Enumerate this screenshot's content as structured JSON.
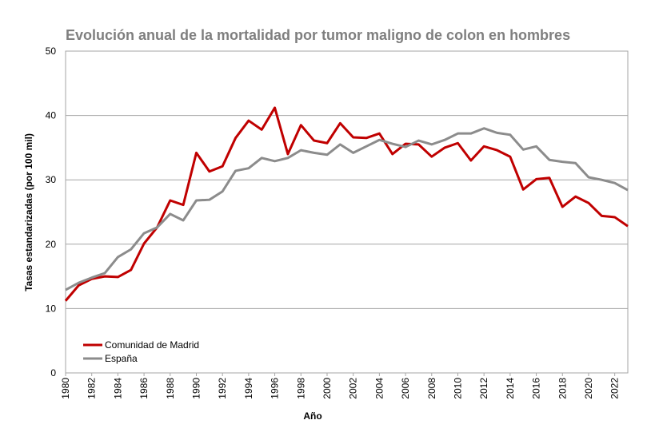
{
  "chart_data": {
    "type": "line",
    "title": "Evolución anual de la mortalidad por tumor maligno de colon en hombres",
    "xlabel": "Año",
    "ylabel": "Tasas estandarizadas (por 100 mil)",
    "x": [
      1980,
      1981,
      1982,
      1983,
      1984,
      1985,
      1986,
      1987,
      1988,
      1989,
      1990,
      1991,
      1992,
      1993,
      1994,
      1995,
      1996,
      1997,
      1998,
      1999,
      2000,
      2001,
      2002,
      2003,
      2004,
      2005,
      2006,
      2007,
      2008,
      2009,
      2010,
      2011,
      2012,
      2013,
      2014,
      2015,
      2016,
      2017,
      2018,
      2019,
      2020,
      2021,
      2022,
      2023
    ],
    "series": [
      {
        "name": "Comunidad de Madrid",
        "color": "#c00000",
        "values": [
          11.2,
          13.6,
          14.6,
          15.0,
          14.9,
          16.0,
          20.1,
          22.6,
          26.8,
          26.1,
          34.2,
          31.3,
          32.1,
          36.5,
          39.2,
          37.8,
          41.2,
          34.0,
          38.5,
          36.1,
          35.7,
          38.8,
          36.6,
          36.5,
          37.2,
          34.0,
          35.6,
          35.5,
          33.6,
          35.0,
          35.7,
          33.0,
          35.2,
          34.6,
          33.6,
          28.5,
          30.1,
          30.3,
          25.8,
          27.4,
          26.4,
          24.4,
          24.2,
          22.8
        ]
      },
      {
        "name": "España",
        "color": "#8c8c8c",
        "values": [
          12.9,
          14.0,
          14.8,
          15.5,
          18.0,
          19.2,
          21.7,
          22.6,
          24.7,
          23.7,
          26.8,
          26.9,
          28.2,
          31.4,
          31.8,
          33.4,
          32.9,
          33.4,
          34.6,
          34.2,
          33.9,
          35.5,
          34.2,
          35.2,
          36.2,
          35.6,
          35.1,
          36.1,
          35.5,
          36.2,
          37.2,
          37.2,
          38.0,
          37.3,
          37.0,
          34.7,
          35.2,
          33.1,
          32.8,
          32.6,
          30.4,
          30.0,
          29.5,
          28.4
        ]
      }
    ],
    "xlim": [
      1980,
      2023
    ],
    "xticks": [
      1980,
      1982,
      1984,
      1986,
      1988,
      1990,
      1992,
      1994,
      1996,
      1998,
      2000,
      2002,
      2004,
      2006,
      2008,
      2010,
      2012,
      2014,
      2016,
      2018,
      2020,
      2022
    ],
    "ylim": [
      0,
      50
    ],
    "yticks": [
      0,
      10,
      20,
      30,
      40,
      50
    ],
    "grid": true,
    "legend": "lower left"
  }
}
